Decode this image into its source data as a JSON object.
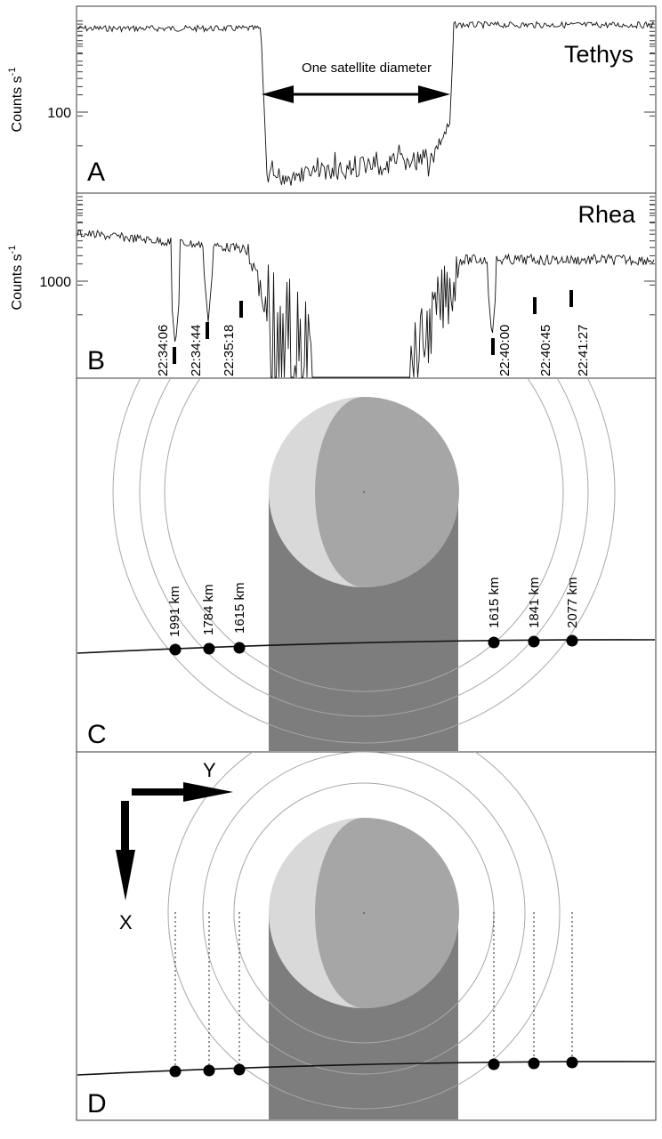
{
  "panels": {
    "A": {
      "letter": "A",
      "title": "Tethys",
      "ylabel_base": "Counts s",
      "ylabel_exp": "-1",
      "ytick_label": "100",
      "annotation": "One satellite diameter"
    },
    "B": {
      "letter": "B",
      "title": "Rhea",
      "ylabel_base": "Counts s",
      "ylabel_exp": "-1",
      "ytick_label": "1000",
      "times": [
        "22:34:06",
        "22:34:44",
        "22:35:18",
        "22:40:00",
        "22:40:45",
        "22:41:27"
      ]
    },
    "C": {
      "letter": "C",
      "distances": [
        "1991 km",
        "1784 km",
        "1615 km",
        "1615 km",
        "1841 km",
        "2077 km"
      ]
    },
    "D": {
      "letter": "D",
      "axis_y": "Y",
      "axis_x": "X"
    }
  },
  "colors": {
    "moon_lit": "#d9d9d9",
    "moon_dark": "#a6a6a6",
    "shadow": "#7d7d7d",
    "rings": "#a8a8a8"
  }
}
